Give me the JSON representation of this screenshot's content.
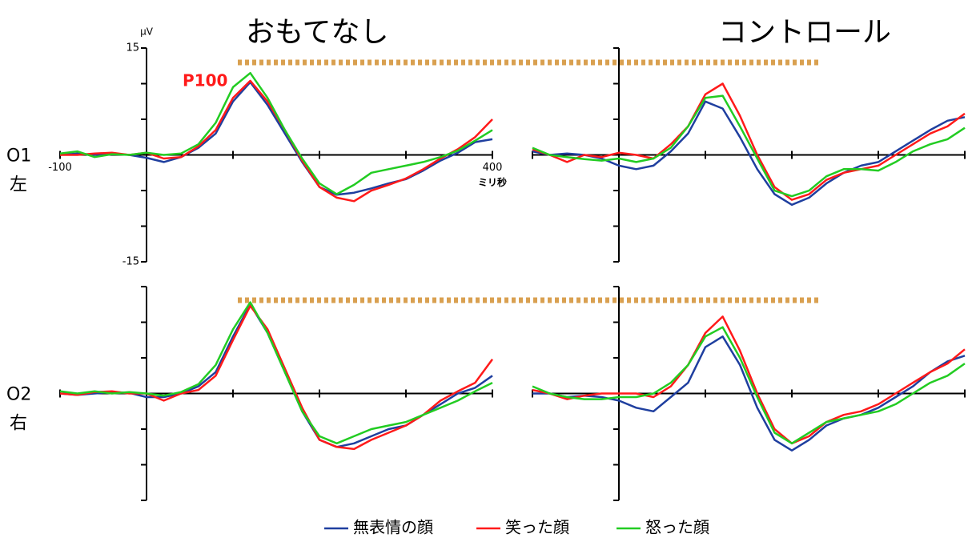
{
  "legend_order": "series",
  "chart_data": [
    {
      "type": "line",
      "title": "おもてなし",
      "row_label": "O1",
      "row_sublabel": "左",
      "yunit": "μV",
      "xunit": "ミリ秒",
      "annotation": "P100",
      "x": [
        -100,
        -80,
        -60,
        -40,
        -20,
        0,
        20,
        40,
        60,
        80,
        100,
        120,
        140,
        160,
        180,
        200,
        220,
        240,
        260,
        280,
        300,
        320,
        340,
        360,
        380,
        400
      ],
      "xlim": [
        -100,
        400
      ],
      "ylim": [
        -15,
        15
      ],
      "xticks": [
        -100,
        {
          "value": 0,
          "label": null
        },
        {
          "value": 100,
          "label": null
        },
        {
          "value": 200,
          "label": null
        },
        {
          "value": 300,
          "label": null
        },
        400
      ],
      "yticks": [
        -15,
        {
          "value": -10,
          "label": null
        },
        {
          "value": -5,
          "label": null
        },
        {
          "value": 0,
          "label": null
        },
        {
          "value": 5,
          "label": null
        },
        {
          "value": 10,
          "label": null
        },
        15
      ],
      "series": [
        {
          "name": "無表情の顔",
          "color": "#1f3f9f",
          "values": [
            0,
            0.2,
            0,
            0.2,
            0,
            -0.4,
            -1,
            -0.3,
            1,
            3,
            7.5,
            10.2,
            7,
            3,
            -1,
            -4.5,
            -5.6,
            -5.3,
            -4.7,
            -4,
            -3.4,
            -2.2,
            -0.8,
            0.3,
            1.8,
            2.2
          ]
        },
        {
          "name": "笑った顔",
          "color": "#ff1a1a",
          "values": [
            0,
            0,
            0.2,
            0.3,
            0,
            0.3,
            -0.5,
            -0.3,
            1.2,
            3.5,
            8,
            10.4,
            7.5,
            3.5,
            -0.8,
            -4.5,
            -6,
            -6.5,
            -5,
            -4.2,
            -3.3,
            -2,
            -0.5,
            0.8,
            2.5,
            5
          ]
        },
        {
          "name": "怒った顔",
          "color": "#22cc22",
          "values": [
            0.2,
            0.5,
            -0.3,
            0.1,
            0,
            0.3,
            0,
            0.2,
            1.5,
            4.5,
            9.5,
            11.5,
            8,
            3.5,
            -0.5,
            -4,
            -5.5,
            -4.2,
            -2.5,
            -2,
            -1.5,
            -1,
            -0.3,
            0.6,
            2,
            3.5
          ]
        }
      ]
    },
    {
      "type": "line",
      "title": "コントロール",
      "tick_labels": false,
      "x": [
        -100,
        -80,
        -60,
        -40,
        -20,
        0,
        20,
        40,
        60,
        80,
        100,
        120,
        140,
        160,
        180,
        200,
        220,
        240,
        260,
        280,
        300,
        320,
        340,
        360,
        380,
        400
      ],
      "xlim": [
        -100,
        400
      ],
      "ylim": [
        -15,
        15
      ],
      "xticks": [
        -100,
        0,
        100,
        200,
        300,
        400
      ],
      "yticks": [
        -15,
        -10,
        -5,
        0,
        5,
        10,
        15
      ],
      "series": [
        {
          "name": "無表情の顔",
          "color": "#1f3f9f",
          "values": [
            0.5,
            0,
            0.2,
            0,
            -0.5,
            -1.5,
            -2,
            -1.5,
            0.5,
            3,
            7.5,
            6.5,
            2.5,
            -2,
            -5.5,
            -7,
            -6,
            -4,
            -2.5,
            -1.5,
            -1,
            0.5,
            2,
            3.5,
            4.8,
            5.3
          ]
        },
        {
          "name": "笑った顔",
          "color": "#ff1a1a",
          "values": [
            0.8,
            0,
            -1,
            0,
            -0.3,
            0.3,
            0,
            -0.5,
            1.5,
            4,
            8.5,
            10,
            5.5,
            0,
            -4.5,
            -6.3,
            -5.5,
            -3.5,
            -2.5,
            -2,
            -1.5,
            0,
            1.5,
            3,
            4,
            5.8
          ]
        },
        {
          "name": "怒った顔",
          "color": "#22cc22",
          "values": [
            1,
            0,
            -0.3,
            -0.6,
            -0.8,
            -0.5,
            -1,
            -0.5,
            1,
            4,
            8,
            8.3,
            4,
            -0.5,
            -5,
            -5.8,
            -5,
            -3,
            -2,
            -2,
            -2.2,
            -1,
            0.5,
            1.5,
            2.2,
            3.8
          ]
        }
      ]
    },
    {
      "type": "line",
      "row_label": "O2",
      "row_sublabel": "右",
      "tick_labels": false,
      "x": [
        -100,
        -80,
        -60,
        -40,
        -20,
        0,
        20,
        40,
        60,
        80,
        100,
        120,
        140,
        160,
        180,
        200,
        220,
        240,
        260,
        280,
        300,
        320,
        340,
        360,
        380,
        400
      ],
      "xlim": [
        -100,
        400
      ],
      "ylim": [
        -15,
        15
      ],
      "xticks": [
        -100,
        0,
        100,
        200,
        300,
        400
      ],
      "yticks": [
        -15,
        -10,
        -5,
        0,
        5,
        10,
        15
      ],
      "series": [
        {
          "name": "無表情の顔",
          "color": "#1f3f9f",
          "values": [
            0,
            -0.2,
            0,
            0.2,
            0.1,
            -0.5,
            -0.5,
            0,
            1,
            3,
            8,
            12.5,
            8.5,
            3,
            -2.5,
            -6.5,
            -7.5,
            -7,
            -6,
            -5,
            -4.5,
            -3,
            -1.5,
            0,
            0.8,
            2.5
          ]
        },
        {
          "name": "笑った顔",
          "color": "#ff1a1a",
          "values": [
            0,
            -0.2,
            0.2,
            0.3,
            0,
            0,
            -1,
            0,
            0.5,
            2.5,
            7.5,
            12.3,
            9,
            3.5,
            -2,
            -6.5,
            -7.5,
            -7.8,
            -6.5,
            -5.5,
            -4.5,
            -3,
            -1,
            0.3,
            1.5,
            4.8
          ]
        },
        {
          "name": "怒った顔",
          "color": "#22cc22",
          "values": [
            0.3,
            0,
            0.3,
            0,
            0.2,
            0,
            -0.3,
            0.2,
            1.3,
            4,
            9,
            12.8,
            8.5,
            3,
            -2.5,
            -6,
            -7,
            -6,
            -5,
            -4.5,
            -4,
            -3,
            -2,
            -1,
            0.3,
            1.5
          ]
        }
      ]
    },
    {
      "type": "line",
      "tick_labels": false,
      "x": [
        -100,
        -80,
        -60,
        -40,
        -20,
        0,
        20,
        40,
        60,
        80,
        100,
        120,
        140,
        160,
        180,
        200,
        220,
        240,
        260,
        280,
        300,
        320,
        340,
        360,
        380,
        400
      ],
      "xlim": [
        -100,
        400
      ],
      "ylim": [
        -15,
        15
      ],
      "xticks": [
        -100,
        0,
        100,
        200,
        300,
        400
      ],
      "yticks": [
        -15,
        -10,
        -5,
        0,
        5,
        10,
        15
      ],
      "series": [
        {
          "name": "無表情の顔",
          "color": "#1f3f9f",
          "values": [
            0,
            0,
            -0.5,
            -0.3,
            -0.5,
            -1,
            -2,
            -2.5,
            -0.5,
            1.5,
            6.5,
            8,
            4,
            -2,
            -6.5,
            -8,
            -6.5,
            -4.5,
            -3.5,
            -3,
            -2,
            -0.5,
            1,
            3,
            4.5,
            5.3
          ]
        },
        {
          "name": "笑った顔",
          "color": "#ff1a1a",
          "values": [
            0.5,
            0,
            -0.8,
            -0.3,
            0,
            0,
            0,
            -0.5,
            1,
            4,
            8.5,
            10.8,
            6,
            0,
            -5,
            -7,
            -6,
            -4,
            -3,
            -2.5,
            -1.5,
            0,
            1.5,
            3,
            4.2,
            6.2
          ]
        },
        {
          "name": "怒った顔",
          "color": "#22cc22",
          "values": [
            1,
            0,
            -0.5,
            -0.8,
            -0.8,
            -0.5,
            -0.5,
            0,
            1.5,
            4,
            8,
            9.3,
            5,
            -0.5,
            -5.5,
            -7,
            -5.5,
            -4,
            -3.5,
            -3,
            -2.5,
            -1.5,
            0,
            1.5,
            2.5,
            4.2
          ]
        }
      ]
    }
  ]
}
